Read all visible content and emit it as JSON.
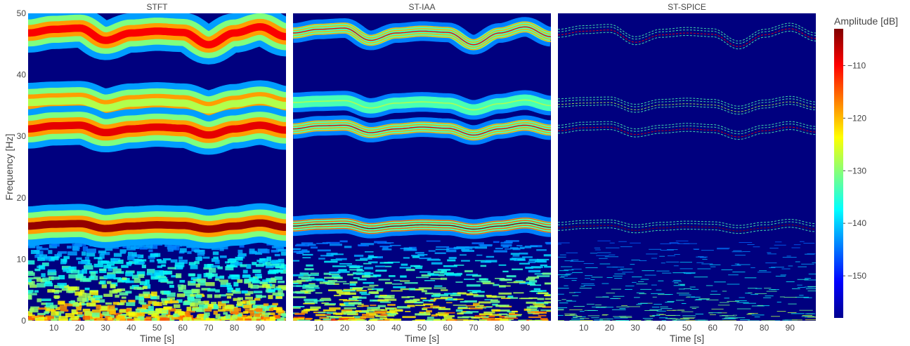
{
  "chart_data": {
    "type": "heatmap",
    "panels": [
      {
        "title": "STFT",
        "xlabel": "Time [s]",
        "ylabel": "Frequency [Hz]",
        "xlim": [
          0,
          100
        ],
        "ylim": [
          0,
          50
        ],
        "xticks": [
          10,
          20,
          30,
          40,
          50,
          60,
          70,
          80,
          90
        ],
        "yticks": [
          0,
          10,
          20,
          30,
          40,
          50
        ]
      },
      {
        "title": "ST-IAA",
        "xlabel": "Time [s]",
        "ylabel": "",
        "xlim": [
          0,
          100
        ],
        "ylim": [
          0,
          50
        ],
        "xticks": [
          10,
          20,
          30,
          40,
          50,
          60,
          70,
          80,
          90
        ],
        "yticks": []
      },
      {
        "title": "ST-SPICE",
        "xlabel": "Time [s]",
        "ylabel": "",
        "xlim": [
          0,
          100
        ],
        "ylim": [
          0,
          50
        ],
        "xticks": [
          10,
          20,
          30,
          40,
          50,
          60,
          70,
          80,
          90
        ],
        "yticks": []
      }
    ],
    "frequency_tracks_hz": [
      {
        "time_s": [
          0,
          10,
          20,
          30,
          40,
          50,
          60,
          70,
          80,
          90,
          100
        ],
        "freq_hz": [
          46.8,
          47.4,
          47.6,
          45.6,
          46.8,
          47.1,
          46.9,
          44.9,
          46.8,
          47.8,
          46.2
        ]
      },
      {
        "time_s": [
          0,
          10,
          20,
          30,
          40,
          50,
          60,
          70,
          80,
          90,
          100
        ],
        "freq_hz": [
          35.5,
          35.7,
          35.8,
          34.6,
          35.4,
          35.6,
          35.4,
          34.3,
          35.3,
          35.9,
          35.0
        ]
      },
      {
        "time_s": [
          0,
          10,
          20,
          30,
          40,
          50,
          60,
          70,
          80,
          90,
          100
        ],
        "freq_hz": [
          31.2,
          31.7,
          31.8,
          30.6,
          31.2,
          31.5,
          31.3,
          30.2,
          31.2,
          31.8,
          31.0
        ]
      },
      {
        "time_s": [
          0,
          10,
          20,
          30,
          40,
          50,
          60,
          70,
          80,
          90,
          100
        ],
        "freq_hz": [
          15.4,
          15.7,
          15.8,
          15.0,
          15.4,
          15.6,
          15.5,
          14.9,
          15.4,
          15.9,
          15.2
        ]
      }
    ],
    "colorbar": {
      "title": "Amplitude [dB]",
      "ticks": [
        -110,
        -120,
        -130,
        -140,
        -150
      ],
      "range": [
        -158,
        -103
      ],
      "colorscale": "Jet"
    },
    "colors": {
      "background": "#00007f",
      "low": "#00008f",
      "high": "#800000"
    }
  }
}
